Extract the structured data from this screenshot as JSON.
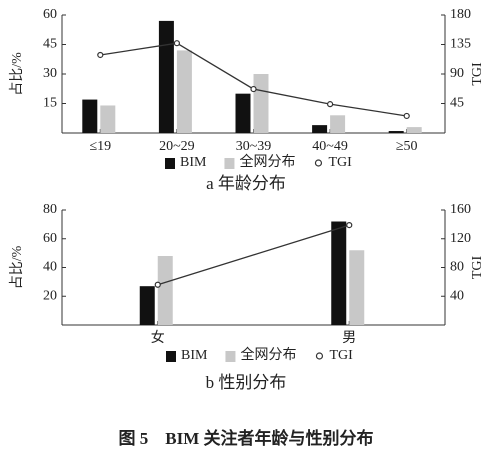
{
  "caption": "图 5　BIM 关注者年龄与性别分布",
  "chart_data": [
    {
      "type": "bar-line",
      "subtitle": "a  年龄分布",
      "ylabel": "占比/%",
      "y2label": "TGI",
      "categories": [
        "≤19",
        "20~29",
        "30~39",
        "40~49",
        "≥50"
      ],
      "series": [
        {
          "name": "BIM",
          "color": "#111111",
          "type": "bar",
          "values": [
            17,
            57,
            20,
            4,
            1
          ]
        },
        {
          "name": "全网分布",
          "color": "#c8c8c8",
          "type": "bar",
          "values": [
            14,
            42,
            30,
            9,
            3
          ]
        },
        {
          "name": "TGI",
          "color": "#333333",
          "type": "line",
          "axis": "y2",
          "values": [
            119,
            137,
            67,
            44,
            26
          ]
        }
      ],
      "ylim": [
        0,
        60
      ],
      "yticks": [
        15,
        30,
        45,
        60
      ],
      "y2lim": [
        0,
        180
      ],
      "y2ticks": [
        45,
        90,
        135,
        180
      ]
    },
    {
      "type": "bar-line",
      "subtitle": "b  性别分布",
      "ylabel": "占比/%",
      "y2label": "TGI",
      "categories": [
        "女",
        "男"
      ],
      "series": [
        {
          "name": "BIM",
          "color": "#111111",
          "type": "bar",
          "values": [
            27,
            72
          ]
        },
        {
          "name": "全网分布",
          "color": "#c8c8c8",
          "type": "bar",
          "values": [
            48,
            52
          ]
        },
        {
          "name": "TGI",
          "color": "#333333",
          "type": "line",
          "axis": "y2",
          "values": [
            56,
            139
          ]
        }
      ],
      "ylim": [
        0,
        80
      ],
      "yticks": [
        20,
        40,
        60,
        80
      ],
      "y2lim": [
        0,
        160
      ],
      "y2ticks": [
        40,
        80,
        120,
        160
      ]
    }
  ]
}
